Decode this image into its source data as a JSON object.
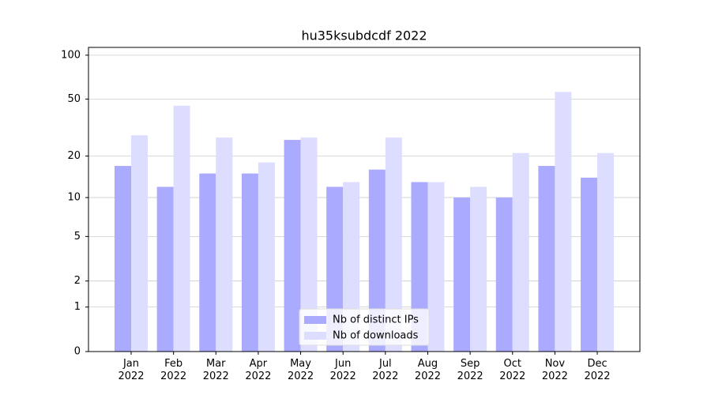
{
  "chart_data": {
    "type": "bar",
    "title": "hu35ksubdcdf 2022",
    "categories": [
      "Jan\n2022",
      "Feb\n2022",
      "Mar\n2022",
      "Apr\n2022",
      "May\n2022",
      "Jun\n2022",
      "Jul\n2022",
      "Aug\n2022",
      "Sep\n2022",
      "Oct\n2022",
      "Nov\n2022",
      "Dec\n2022"
    ],
    "series": [
      {
        "name": "Nb of distinct IPs",
        "color": "#aaaaff",
        "values": [
          17,
          12,
          15,
          15,
          26,
          12,
          16,
          13,
          10,
          10,
          17,
          14
        ]
      },
      {
        "name": "Nb of downloads",
        "color": "#ddddff",
        "values": [
          28,
          45,
          27,
          18,
          27,
          13,
          27,
          13,
          12,
          21,
          56,
          21
        ]
      }
    ],
    "yscale": "log1p",
    "ylim": [
      0,
      113
    ],
    "yticks": [
      0,
      1,
      2,
      5,
      10,
      20,
      50,
      100
    ],
    "grid": true,
    "legend": "lower center"
  }
}
